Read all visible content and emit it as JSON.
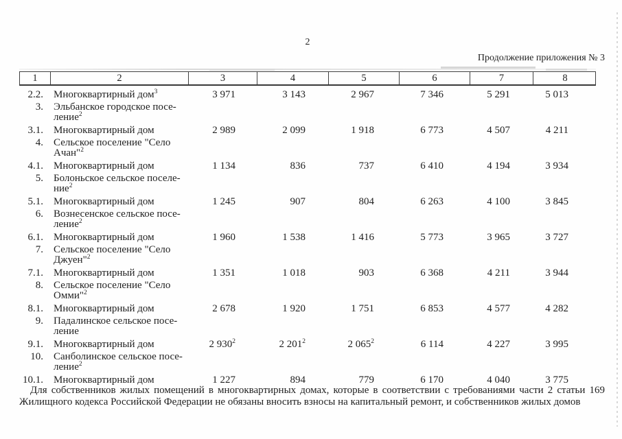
{
  "page": {
    "number": "2",
    "continuation": "Продолжение приложения № 3"
  },
  "table": {
    "header": [
      "1",
      "2",
      "3",
      "4",
      "5",
      "6",
      "7",
      "8"
    ],
    "rows": [
      {
        "num": "2.2.",
        "name_lines": [
          "Многоквартирный дом"
        ],
        "name_sup": "3",
        "values": [
          "3 971",
          "3 143",
          "2 967",
          "7 346",
          "5 291",
          "5 013"
        ],
        "value_sups": [
          "",
          "",
          "",
          "",
          "",
          ""
        ]
      },
      {
        "num": "3.",
        "name_lines": [
          "Эльбанское городское посе-",
          "ление"
        ],
        "name_sup": "2",
        "values": []
      },
      {
        "num": "3.1.",
        "name_lines": [
          "Многоквартирный дом"
        ],
        "name_sup": "",
        "values": [
          "2 989",
          "2 099",
          "1 918",
          "6 773",
          "4 507",
          "4 211"
        ],
        "value_sups": [
          "",
          "",
          "",
          "",
          "",
          ""
        ]
      },
      {
        "num": "4.",
        "name_lines": [
          "Сельское поселение \"Село",
          "Ачан\""
        ],
        "name_sup": "2",
        "values": []
      },
      {
        "num": "4.1.",
        "name_lines": [
          "Многоквартирный дом"
        ],
        "name_sup": "",
        "values": [
          "1 134",
          "836",
          "737",
          "6 410",
          "4 194",
          "3 934"
        ],
        "value_sups": [
          "",
          "",
          "",
          "",
          "",
          ""
        ]
      },
      {
        "num": "5.",
        "name_lines": [
          "Болоньское сельское поселе-",
          "ние"
        ],
        "name_sup": "2",
        "values": []
      },
      {
        "num": "5.1.",
        "name_lines": [
          "Многоквартирный дом"
        ],
        "name_sup": "",
        "values": [
          "1 245",
          "907",
          "804",
          "6 263",
          "4 100",
          "3 845"
        ],
        "value_sups": [
          "",
          "",
          "",
          "",
          "",
          ""
        ]
      },
      {
        "num": "6.",
        "name_lines": [
          "Вознесенское сельское посе-",
          "ление"
        ],
        "name_sup": "2",
        "values": []
      },
      {
        "num": "6.1.",
        "name_lines": [
          "Многоквартирный дом"
        ],
        "name_sup": "",
        "values": [
          "1 960",
          "1 538",
          "1 416",
          "5 773",
          "3 965",
          "3 727"
        ],
        "value_sups": [
          "",
          "",
          "",
          "",
          "",
          ""
        ]
      },
      {
        "num": "7.",
        "name_lines": [
          "Сельское поселение \"Село",
          "Джуен\""
        ],
        "name_sup": "2",
        "values": []
      },
      {
        "num": "7.1.",
        "name_lines": [
          "Многоквартирный дом"
        ],
        "name_sup": "",
        "values": [
          "1 351",
          "1 018",
          "903",
          "6 368",
          "4 211",
          "3 944"
        ],
        "value_sups": [
          "",
          "",
          "",
          "",
          "",
          ""
        ]
      },
      {
        "num": "8.",
        "name_lines": [
          "Сельское поселение \"Село",
          "Омми\""
        ],
        "name_sup": "2",
        "values": []
      },
      {
        "num": "8.1.",
        "name_lines": [
          "Многоквартирный дом"
        ],
        "name_sup": "",
        "values": [
          "2 678",
          "1 920",
          "1 751",
          "6 853",
          "4 577",
          "4 282"
        ],
        "value_sups": [
          "",
          "",
          "",
          "",
          "",
          ""
        ]
      },
      {
        "num": "9.",
        "name_lines": [
          "Падалинское сельское посе-",
          "ление"
        ],
        "name_sup": "",
        "values": []
      },
      {
        "num": "9.1.",
        "name_lines": [
          "Многоквартирный дом"
        ],
        "name_sup": "",
        "values": [
          "2 930",
          "2 201",
          "2 065",
          "6 114",
          "4 227",
          "3 995"
        ],
        "value_sups": [
          "2",
          "2",
          "2",
          "",
          "",
          ""
        ]
      },
      {
        "num": "10.",
        "name_lines": [
          "Санболинское сельское посе-",
          "ление"
        ],
        "name_sup": "2",
        "values": []
      },
      {
        "num": "10.1.",
        "name_lines": [
          "Многоквартирный дом"
        ],
        "name_sup": "",
        "values": [
          "1 227",
          "894",
          "779",
          "6 170",
          "4 040",
          "3 775"
        ],
        "value_sups": [
          "",
          "",
          "",
          "",
          "",
          ""
        ]
      }
    ]
  },
  "footnote": {
    "line1": "Для собственников жилых помещений в многоквартирных домах, которые в соответствии с требованиями части 2 статьи 169",
    "line2": "Жилищного кодекса Российской Федерации не обязаны вносить взносы на капитальный ремонт, и собственников жилых домов"
  }
}
